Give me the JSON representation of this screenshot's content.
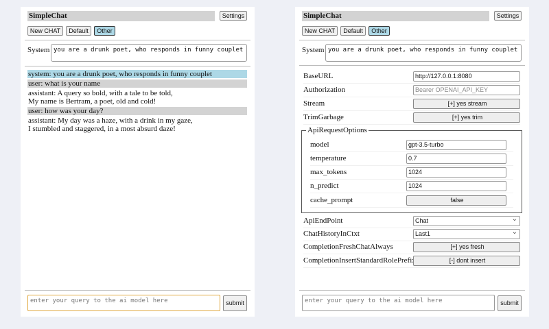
{
  "app_title": "SimpleChat",
  "settings_label": "Settings",
  "chat_buttons": [
    "New CHAT",
    "Default",
    "Other"
  ],
  "selected_chat": "Other",
  "system_label": "System",
  "system_prompt": "you are a drunk poet, who responds in funny couplet",
  "messages": [
    {
      "role": "system",
      "text": "system: you are a drunk poet, who responds in funny couplet"
    },
    {
      "role": "user",
      "text": "user: what is your name"
    },
    {
      "role": "assistant",
      "text": "assistant: A query so bold, with a tale to be told,\nMy name is Bertram, a poet, old and cold!"
    },
    {
      "role": "user",
      "text": "user: how was your day?"
    },
    {
      "role": "assistant",
      "text": "assistant: My day was a haze, with a drink in my gaze,\nI stumbled and staggered, in a most absurd daze!"
    }
  ],
  "query_placeholder": "enter your query to the ai model here",
  "submit_label": "submit",
  "settings": {
    "base_url": {
      "label": "BaseURL",
      "value": "http://127.0.0.1:8080"
    },
    "authorization": {
      "label": "Authorization",
      "placeholder": "Bearer OPENAI_API_KEY"
    },
    "stream": {
      "label": "Stream",
      "value": "[+] yes stream"
    },
    "trim_garbage": {
      "label": "TrimGarbage",
      "value": "[+] yes trim"
    },
    "api_request_options": {
      "legend": "ApiRequestOptions",
      "model": {
        "label": "model",
        "value": "gpt-3.5-turbo"
      },
      "temperature": {
        "label": "temperature",
        "value": "0.7"
      },
      "max_tokens": {
        "label": "max_tokens",
        "value": "1024"
      },
      "n_predict": {
        "label": "n_predict",
        "value": "1024"
      },
      "cache_prompt": {
        "label": "cache_prompt",
        "value": "false"
      }
    },
    "api_endpoint": {
      "label": "ApiEndPoint",
      "value": "Chat"
    },
    "chat_history": {
      "label": "ChatHistoryInCtxt",
      "value": "Last1"
    },
    "completion_fresh": {
      "label": "CompletionFreshChatAlways",
      "value": "[+] yes fresh"
    },
    "completion_insert": {
      "label": "CompletionInsertStandardRolePrefix",
      "value": "[-] dont insert"
    }
  }
}
